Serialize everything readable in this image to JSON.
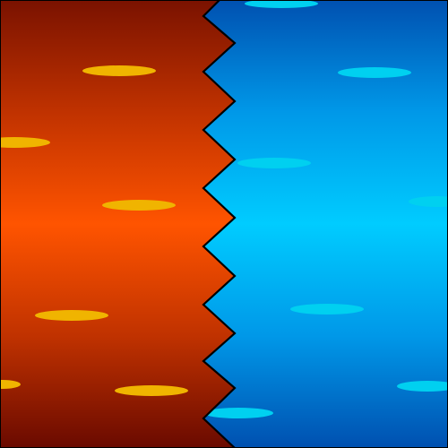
{
  "scene": {
    "left_panel": {
      "name": "fire",
      "gradient": [
        "#7a1200",
        "#c03200",
        "#ff5400",
        "#c03200",
        "#6a0a00"
      ],
      "spot_color": "#f0b400"
    },
    "right_panel": {
      "name": "water",
      "gradient": [
        "#0050b0",
        "#0098e8",
        "#00ccff",
        "#0098e8",
        "#0050b0"
      ],
      "spot_color": "#00d0f0"
    },
    "divider": {
      "style": "zigzag",
      "stroke_color": "#000000"
    }
  }
}
